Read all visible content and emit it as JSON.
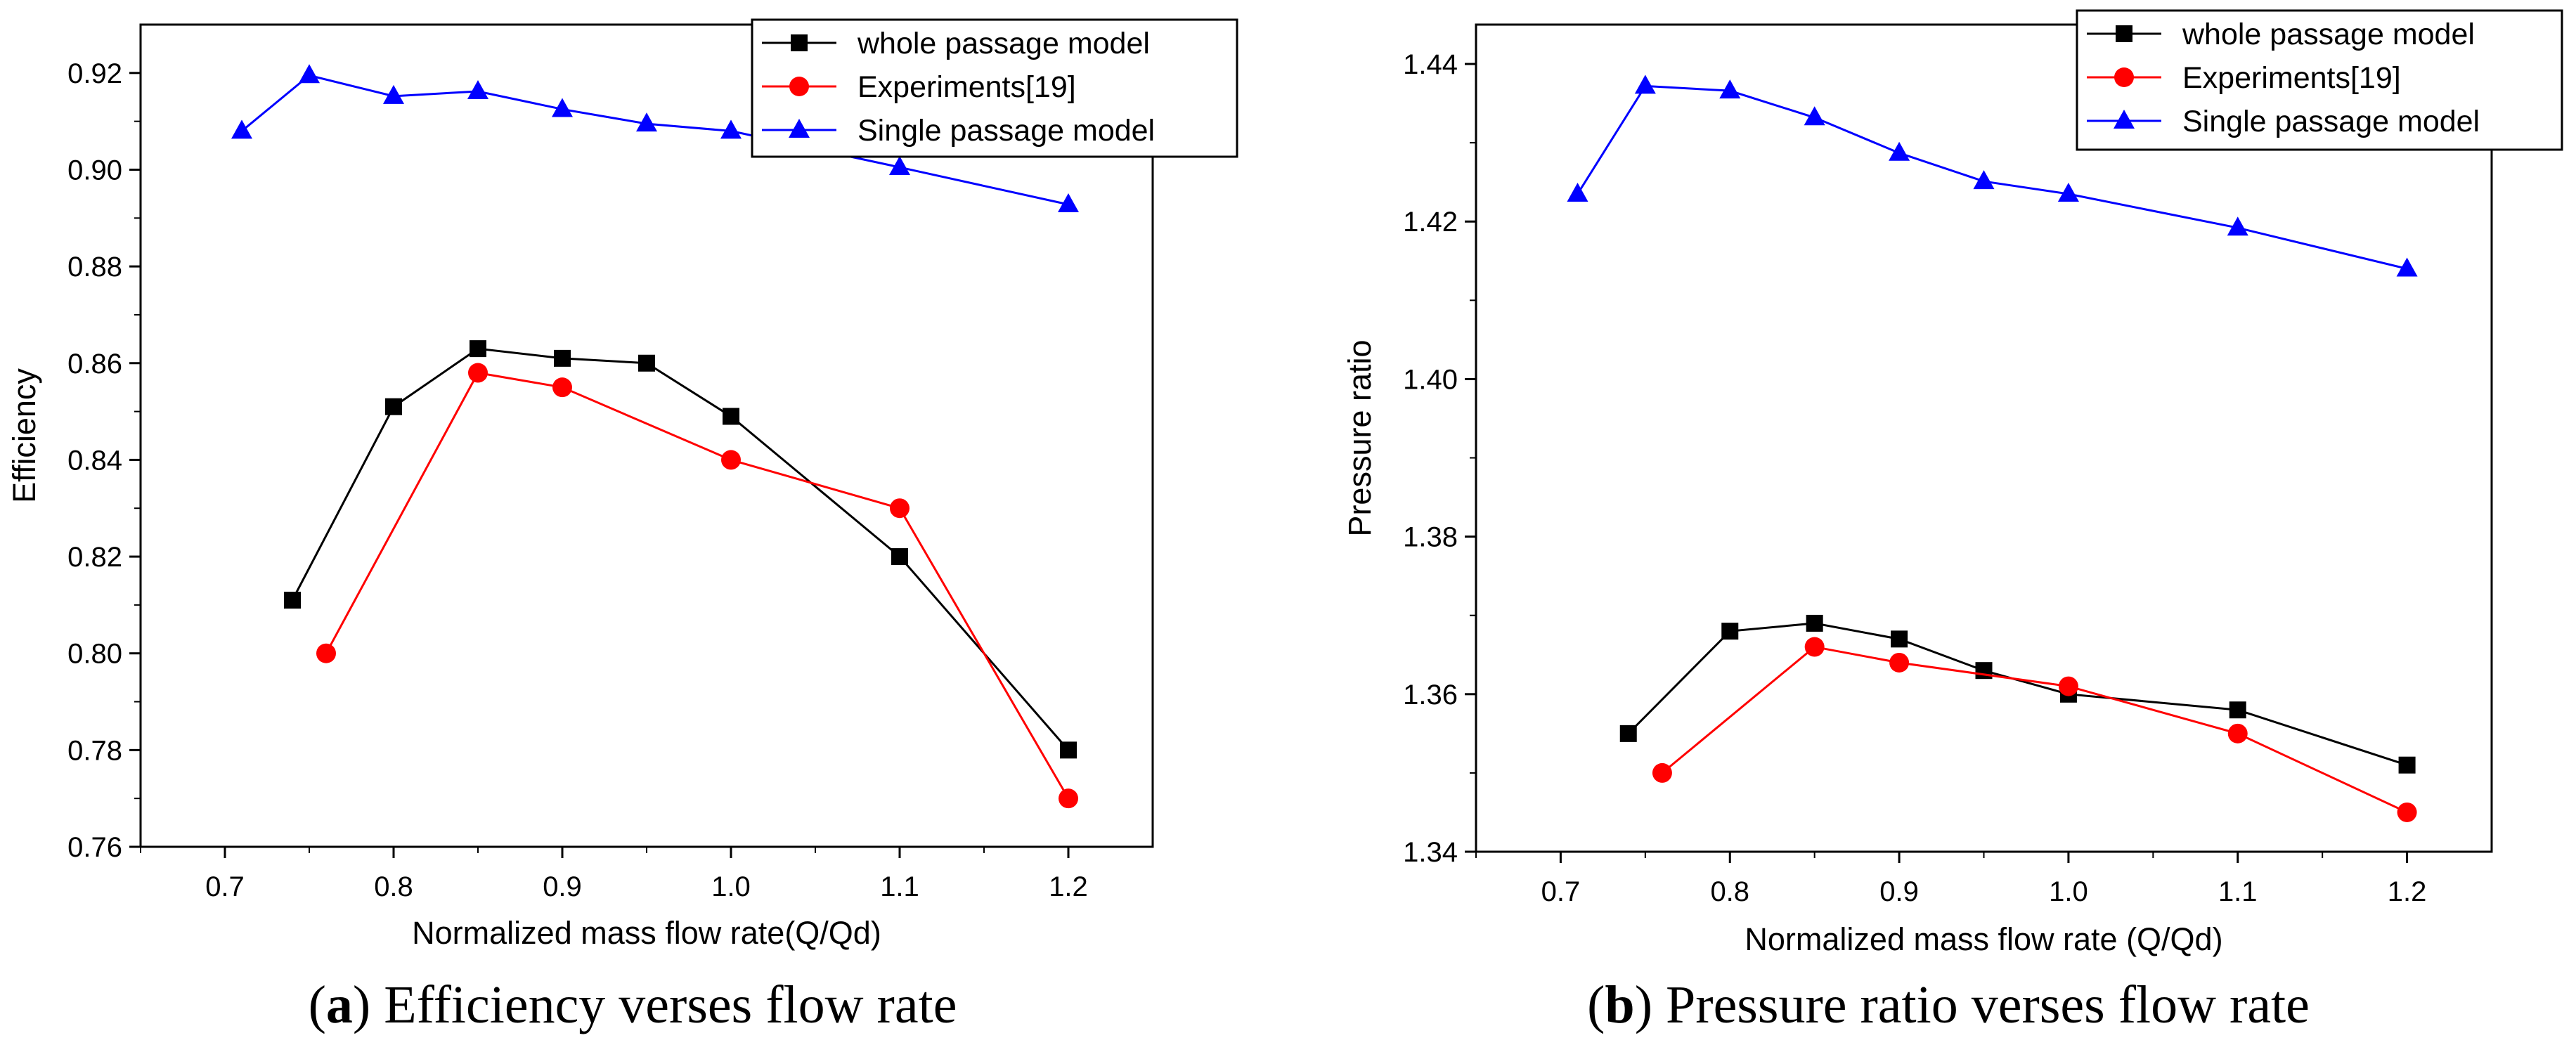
{
  "chart_data": [
    {
      "type": "line",
      "title": "",
      "xlabel": "Normalized mass flow rate(Q/Qd)",
      "ylabel": "Efficiency",
      "xlim": [
        0.65,
        1.25
      ],
      "ylim": [
        0.76,
        0.93
      ],
      "x_ticks": [
        "0.7",
        "0.8",
        "0.9",
        "1.0",
        "1.1",
        "1.2"
      ],
      "y_ticks": [
        "0.76",
        "0.78",
        "0.80",
        "0.82",
        "0.84",
        "0.86",
        "0.88",
        "0.90",
        "0.92"
      ],
      "grid": false,
      "legend_position": "top-right",
      "series": [
        {
          "name": "whole  passage model",
          "color": "#000000",
          "marker": "square",
          "x": [
            0.74,
            0.8,
            0.85,
            0.9,
            0.95,
            1.0,
            1.1,
            1.2
          ],
          "values": [
            0.811,
            0.851,
            0.863,
            0.861,
            0.86,
            0.849,
            0.82,
            0.78
          ]
        },
        {
          "name": "Experiments[19]",
          "color": "#ff0000",
          "marker": "circle",
          "x": [
            0.76,
            0.85,
            0.9,
            1.0,
            1.1,
            1.2
          ],
          "values": [
            0.8,
            0.858,
            0.855,
            0.84,
            0.83,
            0.77
          ]
        },
        {
          "name": "Single passage model",
          "color": "#0000ff",
          "marker": "triangle",
          "x": [
            0.71,
            0.75,
            0.8,
            0.85,
            0.9,
            0.95,
            1.0,
            1.1,
            1.2
          ],
          "values": [
            0.908,
            0.9195,
            0.9152,
            0.9162,
            0.9125,
            0.9095,
            0.908,
            0.9005,
            0.8928
          ]
        }
      ],
      "caption": {
        "label": "a",
        "text": "Efficiency verses flow rate"
      }
    },
    {
      "type": "line",
      "title": "",
      "xlabel": "Normalized mass flow rate (Q/Qd)",
      "ylabel": "Pressure ratio",
      "xlim": [
        0.65,
        1.25
      ],
      "ylim": [
        1.34,
        1.445
      ],
      "x_ticks": [
        "0.7",
        "0.8",
        "0.9",
        "1.0",
        "1.1",
        "1.2"
      ],
      "y_ticks": [
        "1.34",
        "1.36",
        "1.38",
        "1.40",
        "1.42",
        "1.44"
      ],
      "grid": false,
      "legend_position": "top-right",
      "series": [
        {
          "name": "whole passage model",
          "color": "#000000",
          "marker": "square",
          "x": [
            0.74,
            0.8,
            0.85,
            0.9,
            0.95,
            1.0,
            1.1,
            1.2
          ],
          "values": [
            1.355,
            1.368,
            1.369,
            1.367,
            1.363,
            1.36,
            1.358,
            1.351
          ]
        },
        {
          "name": "Experiments[19]",
          "color": "#ff0000",
          "marker": "circle",
          "x": [
            0.76,
            0.85,
            0.9,
            1.0,
            1.1,
            1.2
          ],
          "values": [
            1.35,
            1.366,
            1.364,
            1.361,
            1.355,
            1.345
          ]
        },
        {
          "name": "Single  passage model",
          "color": "#0000ff",
          "marker": "triangle",
          "x": [
            0.71,
            0.75,
            0.8,
            0.85,
            0.9,
            0.95,
            1.0,
            1.1,
            1.2
          ],
          "values": [
            1.4235,
            1.4372,
            1.4366,
            1.4332,
            1.4287,
            1.4251,
            1.4235,
            1.4192,
            1.414
          ]
        }
      ],
      "caption": {
        "label": "b",
        "text": "Pressure ratio verses flow rate"
      }
    }
  ]
}
